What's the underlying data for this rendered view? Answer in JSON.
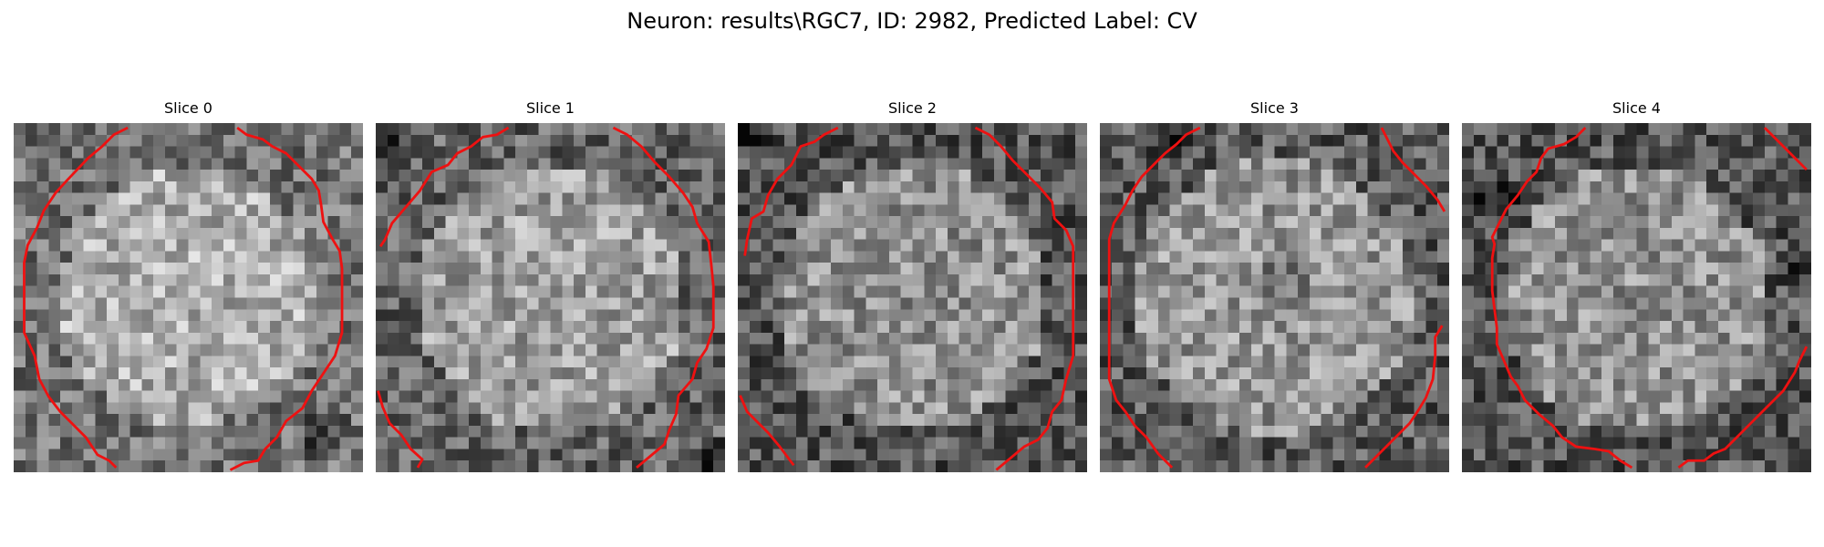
{
  "figure": {
    "title": "Neuron: results\\RGC7, ID: 2982, Predicted Label: CV"
  },
  "colors": {
    "background": "#ffffff",
    "contour": "#ee1111",
    "colormap": "gray"
  },
  "slices": [
    {
      "title": "Slice 0"
    },
    {
      "title": "Slice 1"
    },
    {
      "title": "Slice 2"
    },
    {
      "title": "Slice 3"
    },
    {
      "title": "Slice 4"
    }
  ]
}
